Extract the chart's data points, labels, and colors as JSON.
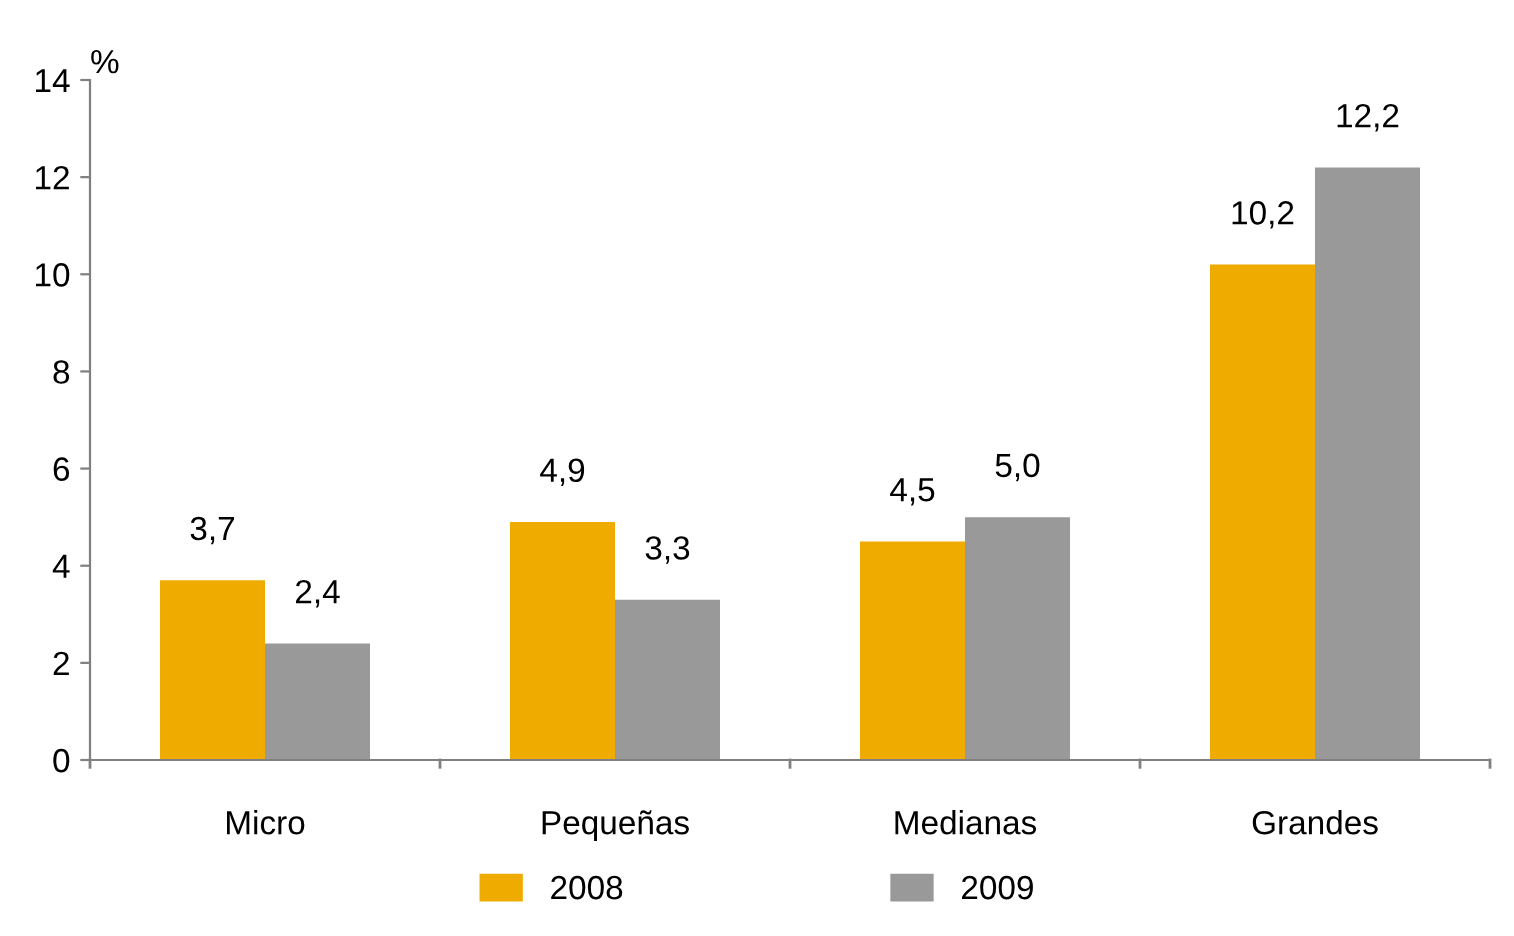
{
  "chart_data": {
    "type": "bar",
    "ylabel": "%",
    "categories": [
      "Micro",
      "Pequeñas",
      "Medianas",
      "Grandes"
    ],
    "series": [
      {
        "name": "2008",
        "color": "#f0ab00",
        "values": [
          3.7,
          4.9,
          4.5,
          10.2
        ],
        "value_labels": [
          "3,7",
          "4,9",
          "4,5",
          "10,2"
        ]
      },
      {
        "name": "2009",
        "color": "#999999",
        "values": [
          2.4,
          3.3,
          5.0,
          12.2
        ],
        "value_labels": [
          "2,4",
          "3,3",
          "5,0",
          "12,2"
        ]
      }
    ],
    "ylim": [
      0,
      14
    ],
    "yticks": [
      0,
      2,
      4,
      6,
      8,
      10,
      12,
      14
    ],
    "grid": false,
    "legend": "bottom"
  }
}
